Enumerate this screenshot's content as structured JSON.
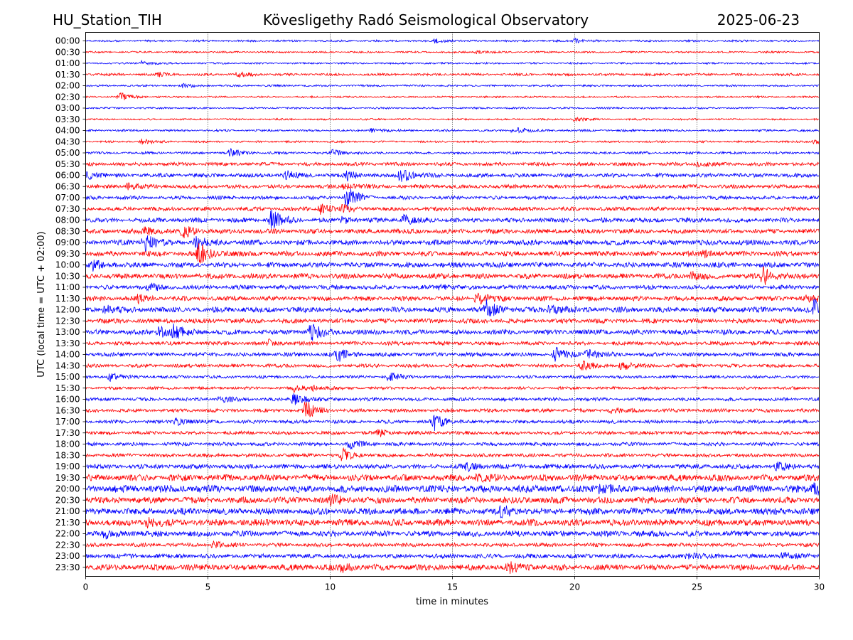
{
  "header": {
    "station": "HU_Station_TIH",
    "observatory": "Kövesligethy Radó Seismological Observatory",
    "date": "2025-06-23"
  },
  "chart_data": {
    "type": "line",
    "title": "Kövesligethy Radó Seismological Observatory",
    "xlabel": "time in minutes",
    "ylabel": "UTC (local time = UTC + 02:00)",
    "xlim": [
      0,
      30
    ],
    "x_ticks": [
      "0",
      "5",
      "10",
      "15",
      "20",
      "25",
      "30"
    ],
    "x_grid": [
      5,
      10,
      15,
      20,
      25
    ],
    "colors": [
      "#0000ff",
      "#ff0000"
    ],
    "rows": [
      {
        "label": "00:00",
        "noise": 1.4,
        "events": [
          [
            14.3,
            3
          ],
          [
            20,
            3
          ]
        ]
      },
      {
        "label": "00:30",
        "noise": 1.3,
        "events": [
          [
            16,
            2
          ]
        ]
      },
      {
        "label": "01:00",
        "noise": 1.3,
        "events": [
          [
            2.3,
            3
          ]
        ]
      },
      {
        "label": "01:30",
        "noise": 1.8,
        "events": [
          [
            6.2,
            4
          ],
          [
            2.9,
            3
          ]
        ]
      },
      {
        "label": "02:00",
        "noise": 1.4,
        "events": [
          [
            4,
            3
          ]
        ]
      },
      {
        "label": "02:30",
        "noise": 1.3,
        "events": [
          [
            1.4,
            6
          ]
        ]
      },
      {
        "label": "03:00",
        "noise": 1.3,
        "events": []
      },
      {
        "label": "03:30",
        "noise": 1.3,
        "events": [
          [
            20,
            3
          ]
        ]
      },
      {
        "label": "04:00",
        "noise": 1.5,
        "events": [
          [
            17.5,
            6
          ],
          [
            11.7,
            3
          ]
        ]
      },
      {
        "label": "04:30",
        "noise": 1.4,
        "events": [
          [
            2.3,
            4
          ],
          [
            29.8,
            3
          ]
        ]
      },
      {
        "label": "05:00",
        "noise": 1.8,
        "events": [
          [
            5.9,
            6
          ],
          [
            10.1,
            5
          ]
        ]
      },
      {
        "label": "05:30",
        "noise": 2.6,
        "events": [
          [
            25,
            3
          ]
        ]
      },
      {
        "label": "06:00",
        "noise": 3,
        "events": [
          [
            12.9,
            11
          ],
          [
            10.7,
            6
          ],
          [
            8.2,
            5
          ],
          [
            0.1,
            5
          ]
        ]
      },
      {
        "label": "06:30",
        "noise": 2.8,
        "events": [
          [
            1.7,
            4
          ],
          [
            10.6,
            4
          ]
        ]
      },
      {
        "label": "07:00",
        "noise": 2.6,
        "events": [
          [
            10.7,
            18
          ]
        ]
      },
      {
        "label": "07:30",
        "noise": 2.9,
        "events": [
          [
            9.6,
            7
          ],
          [
            10.5,
            5
          ]
        ]
      },
      {
        "label": "08:00",
        "noise": 3.2,
        "events": [
          [
            7.6,
            14
          ],
          [
            13,
            7
          ],
          [
            10.5,
            5
          ]
        ]
      },
      {
        "label": "08:30",
        "noise": 3.4,
        "events": [
          [
            4,
            8
          ],
          [
            2.4,
            6
          ]
        ]
      },
      {
        "label": "09:00",
        "noise": 3.8,
        "events": [
          [
            2.4,
            12
          ],
          [
            4.5,
            8
          ]
        ]
      },
      {
        "label": "09:30",
        "noise": 3.7,
        "events": [
          [
            4.6,
            16
          ],
          [
            25.3,
            6
          ]
        ]
      },
      {
        "label": "10:00",
        "noise": 3.8,
        "events": [
          [
            0.3,
            6
          ]
        ]
      },
      {
        "label": "10:30",
        "noise": 3.8,
        "events": [
          [
            27.7,
            12
          ],
          [
            24.8,
            6
          ]
        ]
      },
      {
        "label": "11:00",
        "noise": 3.2,
        "events": [
          [
            2.6,
            5
          ],
          [
            14.5,
            4
          ]
        ]
      },
      {
        "label": "11:30",
        "noise": 3.4,
        "events": [
          [
            16,
            9
          ],
          [
            2.1,
            5
          ],
          [
            29.5,
            6
          ]
        ]
      },
      {
        "label": "12:00",
        "noise": 3.9,
        "events": [
          [
            16.4,
            12
          ],
          [
            29.8,
            14
          ],
          [
            19,
            8
          ],
          [
            0.8,
            6
          ]
        ]
      },
      {
        "label": "12:30",
        "noise": 3.4,
        "events": []
      },
      {
        "label": "13:00",
        "noise": 3.6,
        "events": [
          [
            3,
            8
          ],
          [
            3.6,
            8
          ],
          [
            9.2,
            12
          ]
        ]
      },
      {
        "label": "13:30",
        "noise": 2.8,
        "events": [
          [
            7.5,
            4
          ]
        ]
      },
      {
        "label": "14:00",
        "noise": 2.9,
        "events": [
          [
            10.3,
            10
          ],
          [
            19.2,
            9
          ],
          [
            20.5,
            7
          ]
        ]
      },
      {
        "label": "14:30",
        "noise": 2.6,
        "events": [
          [
            20.3,
            6
          ],
          [
            21.9,
            6
          ]
        ]
      },
      {
        "label": "15:00",
        "noise": 2.2,
        "events": [
          [
            12.4,
            6
          ],
          [
            1,
            5
          ]
        ]
      },
      {
        "label": "15:30",
        "noise": 2,
        "events": [
          [
            8.5,
            5
          ],
          [
            9.3,
            4
          ]
        ]
      },
      {
        "label": "16:00",
        "noise": 2.4,
        "events": [
          [
            8.5,
            11
          ],
          [
            5.5,
            4
          ]
        ]
      },
      {
        "label": "16:30",
        "noise": 2.6,
        "events": [
          [
            9,
            14
          ],
          [
            21.5,
            4
          ]
        ]
      },
      {
        "label": "17:00",
        "noise": 2.5,
        "events": [
          [
            14.2,
            13
          ],
          [
            3.7,
            5
          ]
        ]
      },
      {
        "label": "17:30",
        "noise": 2.5,
        "events": [
          [
            12,
            5
          ]
        ]
      },
      {
        "label": "18:00",
        "noise": 2.6,
        "events": [
          [
            10.8,
            6
          ]
        ]
      },
      {
        "label": "18:30",
        "noise": 2.6,
        "events": [
          [
            10.5,
            9
          ]
        ]
      },
      {
        "label": "19:00",
        "noise": 3.4,
        "events": [
          [
            15.6,
            5
          ],
          [
            28.3,
            6
          ]
        ]
      },
      {
        "label": "19:30",
        "noise": 4.6,
        "events": [
          [
            16,
            5
          ]
        ]
      },
      {
        "label": "20:00",
        "noise": 5.4,
        "events": [
          [
            20.8,
            7
          ],
          [
            29.8,
            9
          ]
        ]
      },
      {
        "label": "20:30",
        "noise": 4.6,
        "events": [
          [
            10,
            6
          ]
        ]
      },
      {
        "label": "21:00",
        "noise": 4.8,
        "events": [
          [
            17,
            8
          ]
        ]
      },
      {
        "label": "21:30",
        "noise": 4.8,
        "events": [
          [
            2.5,
            6
          ]
        ]
      },
      {
        "label": "22:00",
        "noise": 4.2,
        "events": [
          [
            0.8,
            5
          ]
        ]
      },
      {
        "label": "22:30",
        "noise": 2.8,
        "events": [
          [
            5.2,
            4
          ]
        ]
      },
      {
        "label": "23:00",
        "noise": 3.2,
        "events": [
          [
            24.6,
            5
          ],
          [
            28.5,
            5
          ]
        ]
      },
      {
        "label": "23:30",
        "noise": 4.4,
        "events": [
          [
            17.3,
            6
          ],
          [
            10.5,
            5
          ]
        ]
      }
    ]
  }
}
